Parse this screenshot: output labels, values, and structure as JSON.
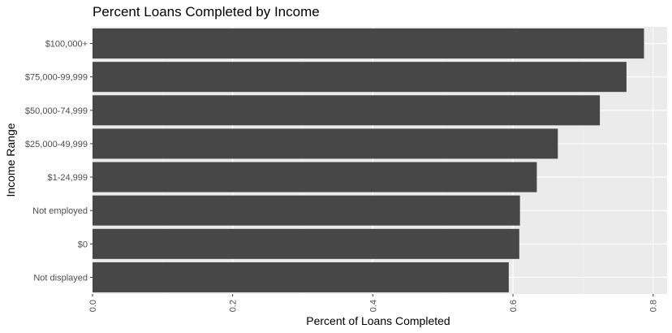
{
  "chart_data": {
    "type": "bar",
    "orientation": "horizontal",
    "title": "Percent Loans Completed by Income",
    "xlabel": "Percent of Loans Completed",
    "ylabel": "Income Range",
    "categories": [
      "$100,000+",
      "$75,000-99,999",
      "$50,000-74,999",
      "$25,000-49,999",
      "$1-24,999",
      "Not employed",
      "$0",
      "Not displayed"
    ],
    "values": [
      0.787,
      0.762,
      0.724,
      0.664,
      0.634,
      0.61,
      0.609,
      0.594
    ],
    "xlim": [
      0,
      0.82
    ],
    "xticks": [
      "0.0",
      "0.2",
      "0.4",
      "0.6",
      "0.8"
    ],
    "grid": true,
    "colors": {
      "bar": "#474747",
      "panel": "#ebebeb",
      "grid_major": "#ffffff",
      "grid_minor": "#f5f5f5",
      "tick": "#333333"
    }
  }
}
